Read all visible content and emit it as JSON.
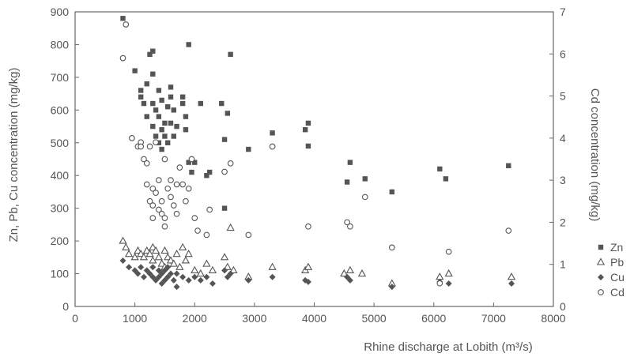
{
  "chart_data": {
    "type": "scatter",
    "title": "",
    "xlabel": "Rhine discharge at Lobith (m³/s)",
    "ylabel_left": "Zn, Pb, Cu concentration (mg/kg)",
    "ylabel_right": "Cd concentration (mg/kg)",
    "xlim": [
      0,
      8000
    ],
    "ylim_left": [
      0,
      900
    ],
    "ylim_right": [
      0,
      7
    ],
    "xticks": [
      "0",
      "1000",
      "2000",
      "3000",
      "4000",
      "5000",
      "6000",
      "7000",
      "8000"
    ],
    "yticks_left": [
      "0",
      "100",
      "200",
      "300",
      "400",
      "500",
      "600",
      "700",
      "800",
      "900"
    ],
    "yticks_right": [
      "0",
      "1",
      "2",
      "3",
      "4",
      "5",
      "6",
      "7"
    ],
    "grid": false,
    "legend_position": "right",
    "series": [
      {
        "name": "Zn",
        "axis": "left",
        "marker": "square-filled",
        "points": [
          [
            800,
            880
          ],
          [
            1000,
            720
          ],
          [
            1100,
            660
          ],
          [
            1100,
            640
          ],
          [
            1150,
            620
          ],
          [
            1200,
            580
          ],
          [
            1200,
            680
          ],
          [
            1250,
            770
          ],
          [
            1300,
            780
          ],
          [
            1300,
            710
          ],
          [
            1300,
            620
          ],
          [
            1300,
            550
          ],
          [
            1350,
            600
          ],
          [
            1350,
            520
          ],
          [
            1400,
            660
          ],
          [
            1400,
            580
          ],
          [
            1400,
            500
          ],
          [
            1450,
            630
          ],
          [
            1450,
            540
          ],
          [
            1450,
            480
          ],
          [
            1500,
            560
          ],
          [
            1500,
            520
          ],
          [
            1550,
            610
          ],
          [
            1550,
            500
          ],
          [
            1600,
            670
          ],
          [
            1600,
            640
          ],
          [
            1600,
            560
          ],
          [
            1650,
            520
          ],
          [
            1650,
            600
          ],
          [
            1700,
            550
          ],
          [
            1800,
            620
          ],
          [
            1800,
            640
          ],
          [
            1850,
            580
          ],
          [
            1850,
            540
          ],
          [
            1900,
            800
          ],
          [
            1900,
            440
          ],
          [
            1950,
            410
          ],
          [
            2000,
            440
          ],
          [
            2100,
            620
          ],
          [
            2200,
            400
          ],
          [
            2250,
            410
          ],
          [
            2450,
            620
          ],
          [
            2500,
            510
          ],
          [
            2500,
            300
          ],
          [
            2550,
            590
          ],
          [
            2600,
            770
          ],
          [
            2900,
            480
          ],
          [
            3300,
            530
          ],
          [
            3850,
            540
          ],
          [
            3900,
            560
          ],
          [
            3900,
            490
          ],
          [
            4550,
            380
          ],
          [
            4600,
            440
          ],
          [
            4850,
            390
          ],
          [
            5300,
            350
          ],
          [
            6100,
            420
          ],
          [
            6200,
            390
          ],
          [
            7250,
            430
          ]
        ]
      },
      {
        "name": "Pb",
        "axis": "left",
        "marker": "triangle-open",
        "points": [
          [
            800,
            200
          ],
          [
            850,
            180
          ],
          [
            900,
            160
          ],
          [
            1000,
            150
          ],
          [
            1050,
            170
          ],
          [
            1100,
            160
          ],
          [
            1150,
            150
          ],
          [
            1200,
            170
          ],
          [
            1250,
            160
          ],
          [
            1300,
            180
          ],
          [
            1300,
            140
          ],
          [
            1350,
            170
          ],
          [
            1400,
            150
          ],
          [
            1450,
            130
          ],
          [
            1500,
            170
          ],
          [
            1500,
            120
          ],
          [
            1550,
            150
          ],
          [
            1600,
            140
          ],
          [
            1650,
            130
          ],
          [
            1700,
            160
          ],
          [
            1750,
            120
          ],
          [
            1800,
            180
          ],
          [
            1850,
            140
          ],
          [
            1900,
            160
          ],
          [
            2000,
            110
          ],
          [
            2100,
            100
          ],
          [
            2200,
            130
          ],
          [
            2300,
            110
          ],
          [
            2500,
            150
          ],
          [
            2550,
            120
          ],
          [
            2600,
            240
          ],
          [
            2650,
            110
          ],
          [
            2900,
            90
          ],
          [
            3300,
            120
          ],
          [
            3850,
            110
          ],
          [
            3900,
            120
          ],
          [
            4500,
            100
          ],
          [
            4600,
            110
          ],
          [
            4800,
            100
          ],
          [
            5300,
            70
          ],
          [
            6100,
            90
          ],
          [
            6250,
            100
          ],
          [
            7300,
            90
          ]
        ]
      },
      {
        "name": "Cu",
        "axis": "left",
        "marker": "diamond-filled",
        "points": [
          [
            800,
            140
          ],
          [
            900,
            120
          ],
          [
            1000,
            110
          ],
          [
            1050,
            100
          ],
          [
            1100,
            120
          ],
          [
            1150,
            90
          ],
          [
            1200,
            110
          ],
          [
            1250,
            100
          ],
          [
            1300,
            90
          ],
          [
            1300,
            120
          ],
          [
            1350,
            80
          ],
          [
            1400,
            110
          ],
          [
            1400,
            90
          ],
          [
            1450,
            100
          ],
          [
            1450,
            70
          ],
          [
            1500,
            110
          ],
          [
            1500,
            80
          ],
          [
            1550,
            90
          ],
          [
            1550,
            120
          ],
          [
            1600,
            100
          ],
          [
            1650,
            80
          ],
          [
            1700,
            60
          ],
          [
            1700,
            100
          ],
          [
            1800,
            90
          ],
          [
            1900,
            80
          ],
          [
            2000,
            90
          ],
          [
            2100,
            80
          ],
          [
            2200,
            90
          ],
          [
            2300,
            70
          ],
          [
            2500,
            110
          ],
          [
            2550,
            90
          ],
          [
            2600,
            100
          ],
          [
            2900,
            80
          ],
          [
            3300,
            90
          ],
          [
            3850,
            80
          ],
          [
            3900,
            75
          ],
          [
            4550,
            90
          ],
          [
            4600,
            80
          ],
          [
            5300,
            60
          ],
          [
            6100,
            75
          ],
          [
            6250,
            70
          ],
          [
            7300,
            70
          ]
        ]
      },
      {
        "name": "Cd",
        "axis": "right",
        "marker": "circle-open",
        "points": [
          [
            800,
            5.9
          ],
          [
            850,
            6.7
          ],
          [
            950,
            4.0
          ],
          [
            1050,
            3.8
          ],
          [
            1100,
            3.9
          ],
          [
            1100,
            3.8
          ],
          [
            1150,
            3.5
          ],
          [
            1200,
            3.4
          ],
          [
            1200,
            2.9
          ],
          [
            1250,
            3.8
          ],
          [
            1250,
            2.5
          ],
          [
            1300,
            2.8
          ],
          [
            1300,
            2.4
          ],
          [
            1300,
            2.1
          ],
          [
            1350,
            3.9
          ],
          [
            1350,
            2.7
          ],
          [
            1400,
            3.0
          ],
          [
            1400,
            2.3
          ],
          [
            1450,
            2.5
          ],
          [
            1450,
            2.2
          ],
          [
            1500,
            3.5
          ],
          [
            1500,
            2.1
          ],
          [
            1500,
            1.9
          ],
          [
            1550,
            2.8
          ],
          [
            1600,
            3.0
          ],
          [
            1600,
            2.6
          ],
          [
            1650,
            2.4
          ],
          [
            1700,
            2.9
          ],
          [
            1700,
            2.2
          ],
          [
            1750,
            3.3
          ],
          [
            1800,
            2.9
          ],
          [
            1850,
            2.5
          ],
          [
            1900,
            2.8
          ],
          [
            1950,
            3.5
          ],
          [
            2000,
            2.1
          ],
          [
            2050,
            1.8
          ],
          [
            2200,
            1.7
          ],
          [
            2250,
            2.3
          ],
          [
            2500,
            3.2
          ],
          [
            2600,
            3.4
          ],
          [
            2900,
            1.7
          ],
          [
            3300,
            3.8
          ],
          [
            3900,
            1.9
          ],
          [
            4550,
            2.0
          ],
          [
            4600,
            1.9
          ],
          [
            4850,
            2.6
          ],
          [
            5300,
            1.4
          ],
          [
            6100,
            0.55
          ],
          [
            6250,
            1.3
          ],
          [
            7250,
            1.8
          ]
        ]
      }
    ],
    "legend": [
      "Zn",
      "Pb",
      "Cu",
      "Cd"
    ]
  }
}
